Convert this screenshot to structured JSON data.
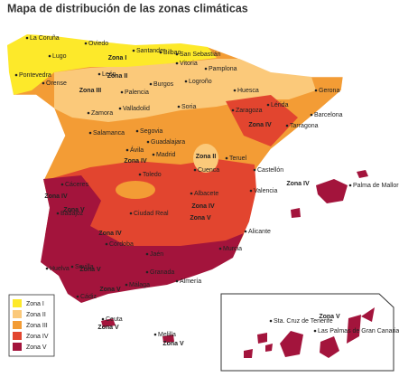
{
  "title": "Mapa de distribución de las zonas climáticas",
  "legend": [
    {
      "label": "Zona I",
      "color": "#fde92a"
    },
    {
      "label": "Zona II",
      "color": "#fbc97a"
    },
    {
      "label": "Zona III",
      "color": "#f39c35"
    },
    {
      "label": "Zona IV",
      "color": "#e2452f"
    },
    {
      "label": "Zona V",
      "color": "#a3143c"
    }
  ],
  "cities": [
    "La Coruña",
    "Oviedo",
    "Santander",
    "Bilbao",
    "San Sebastián",
    "Lugo",
    "Vitoria",
    "Pamplona",
    "Pontevedra",
    "Orense",
    "León",
    "Burgos",
    "Logroño",
    "Huesca",
    "Gerona",
    "Palencia",
    "Zamora",
    "Valladolid",
    "Soria",
    "Zaragoza",
    "Lérida",
    "Barcelona",
    "Tarragona",
    "Salamanca",
    "Segovia",
    "Guadalajara",
    "Ávila",
    "Madrid",
    "Teruel",
    "Cuenca",
    "Castellón",
    "Toledo",
    "Cáceres",
    "Badajoz",
    "Ciudad Real",
    "Valencia",
    "Albacete",
    "Alicante",
    "Córdoba",
    "Jaén",
    "Murcia",
    "Sevilla",
    "Huelva",
    "Granada",
    "Almería",
    "Málaga",
    "Cádiz",
    "Ceuta",
    "Melilla",
    "Palma de Mallorca",
    "Sta. Cruz de Tenerife",
    "Las Palmas de Gran Canaria"
  ],
  "zone_labels": [
    "Zona I",
    "Zona II",
    "Zona III",
    "Zona IV",
    "Zona IV",
    "Zona II",
    "Zona IV",
    "Zona V",
    "Zona IV",
    "Zona V",
    "Zona IV",
    "Zona V",
    "Zona V",
    "Zona IV",
    "Zona V",
    "Zona V",
    "Zona V"
  ]
}
